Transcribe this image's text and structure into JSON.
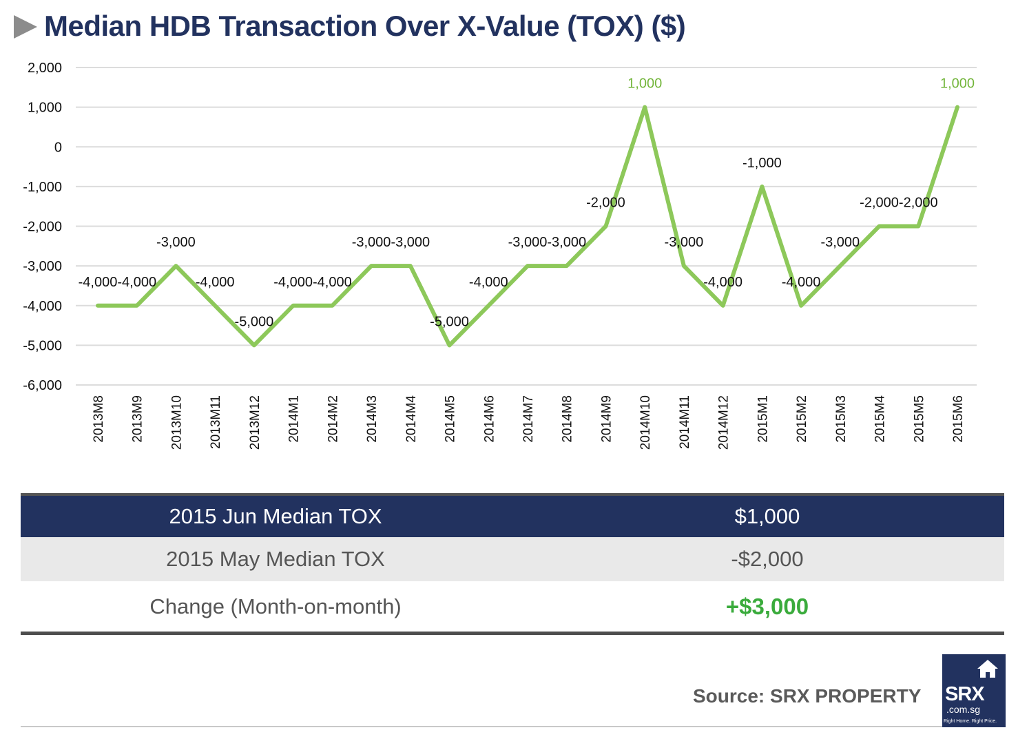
{
  "title": "Median HDB Transaction Over X-Value (TOX) ($)",
  "chart_data": {
    "type": "line",
    "title": "Median HDB Transaction Over X-Value (TOX) ($)",
    "categories": [
      "2013M8",
      "2013M9",
      "2013M10",
      "2013M11",
      "2013M12",
      "2014M1",
      "2014M2",
      "2014M3",
      "2014M4",
      "2014M5",
      "2014M6",
      "2014M7",
      "2014M8",
      "2014M9",
      "2014M10",
      "2014M11",
      "2014M12",
      "2015M1",
      "2015M2",
      "2015M3",
      "2015M4",
      "2015M5",
      "2015M6"
    ],
    "values": [
      -4000,
      -4000,
      -3000,
      -4000,
      -5000,
      -4000,
      -4000,
      -3000,
      -3000,
      -5000,
      -4000,
      -3000,
      -3000,
      -2000,
      1000,
      -3000,
      -4000,
      -1000,
      -4000,
      -3000,
      -2000,
      -2000,
      1000
    ],
    "data_labels": [
      "-4,000",
      "-4,000",
      "-3,000",
      "-4,000",
      "-5,000",
      "-4,000",
      "-4,000",
      "-3,000",
      "-3,000",
      "-5,000",
      "-4,000",
      "-3,000",
      "-3,000",
      "-2,000",
      "1,000",
      "-3,000",
      "-4,000",
      "-1,000",
      "-4,000",
      "-3,000",
      "-2,000",
      "-2,000",
      "1,000"
    ],
    "yticks": [
      "2,000",
      "1,000",
      "0",
      "-1,000",
      "-2,000",
      "-3,000",
      "-4,000",
      "-5,000",
      "-6,000"
    ],
    "ylim": [
      -6000,
      2000
    ],
    "grid": true,
    "legend": "none",
    "line_color": "#8dc85a",
    "positive_label_color": "#72b53a"
  },
  "summary": {
    "row1": {
      "label": "2015 Jun Median TOX",
      "value": "$1,000"
    },
    "row2": {
      "label": "2015 May Median TOX",
      "value": "-$2,000"
    },
    "row3": {
      "label": "Change (Month-on-month)",
      "value": "+$3,000"
    }
  },
  "source": "Source:  SRX PROPERTY",
  "logo": {
    "name": "SRX",
    "domain": ".com.sg",
    "tagline": "Right Home. Right Price.",
    "icon": "house-icon"
  },
  "colors": {
    "navy": "#22325f",
    "green_line": "#8dc85a",
    "green_text": "#3aab3c"
  }
}
